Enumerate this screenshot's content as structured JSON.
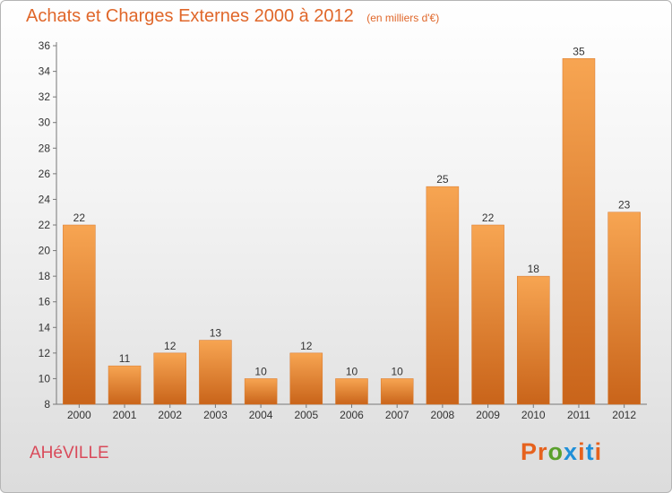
{
  "header": {
    "title": "Achats et Charges Externes 2000 à 2012",
    "unit": "(en milliers d'€)"
  },
  "footer": {
    "place": "AHéVILLE",
    "brand": "Proxiti",
    "brand_colors": [
      "#e6621e",
      "#e6621e",
      "#5aa02c",
      "#1f8fd8",
      "#e6621e",
      "#1f8fd8"
    ]
  },
  "colors": {
    "bar_light": "#f7a552",
    "bar_dark": "#c9641a",
    "title": "#e0672a",
    "place": "#d94a5a"
  },
  "chart_data": {
    "type": "bar",
    "categories": [
      "2000",
      "2001",
      "2002",
      "2003",
      "2004",
      "2005",
      "2006",
      "2007",
      "2008",
      "2009",
      "2010",
      "2011",
      "2012"
    ],
    "values": [
      22,
      11,
      12,
      13,
      10,
      12,
      10,
      10,
      25,
      22,
      18,
      35,
      23
    ],
    "title": "Achats et Charges Externes 2000 à 2012",
    "xlabel": "",
    "ylabel": "",
    "ylim": [
      8,
      36
    ],
    "yticks": [
      8,
      10,
      12,
      14,
      16,
      18,
      20,
      22,
      24,
      26,
      28,
      30,
      32,
      34,
      36
    ],
    "grid": false,
    "data_labels": true
  }
}
